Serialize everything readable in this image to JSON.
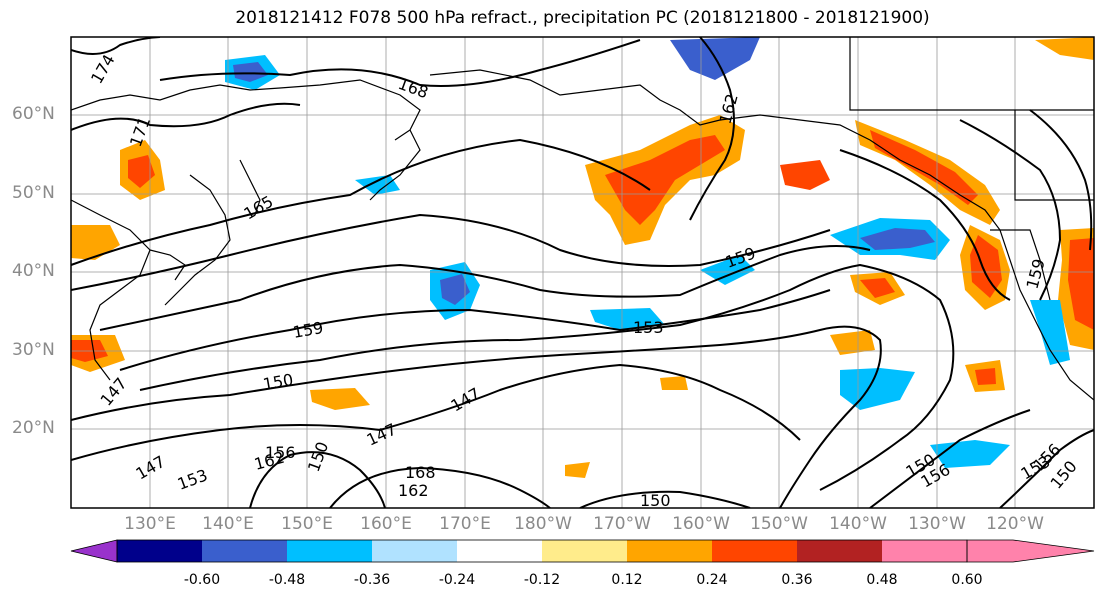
{
  "title": "2018121412 F078 500 hPa refract., precipitation PC (2018121800 - 2018121900)",
  "lat_labels": [
    "60°N",
    "50°N",
    "40°N",
    "30°N",
    "20°N"
  ],
  "lon_labels": [
    "130°E",
    "140°E",
    "150°E",
    "160°E",
    "170°E",
    "180°W",
    "170°W",
    "160°W",
    "150°W",
    "140°W",
    "130°W",
    "120°W"
  ],
  "colorbar": {
    "colors": [
      "#9932cc",
      "#00008b",
      "#3a5fcd",
      "#00bfff",
      "#b0e2ff",
      "#ffffff",
      "#ffec8b",
      "#ffa500",
      "#ff4500",
      "#b22222",
      "#ff82ab"
    ],
    "tick_labels": [
      "-0.60",
      "-0.48",
      "-0.36",
      "-0.24",
      "-0.12",
      "0.12",
      "0.24",
      "0.36",
      "0.48",
      "0.60"
    ]
  },
  "contour_labels": [
    "174",
    "171",
    "168",
    "165",
    "162",
    "159",
    "159",
    "159",
    "153",
    "153",
    "150",
    "150",
    "147",
    "147",
    "147",
    "147",
    "156",
    "162",
    "168",
    "150",
    "156",
    "150",
    "153",
    "156",
    "162",
    "150"
  ],
  "map_extent": {
    "lon": [
      120,
      250
    ],
    "lat": [
      10,
      70
    ]
  }
}
